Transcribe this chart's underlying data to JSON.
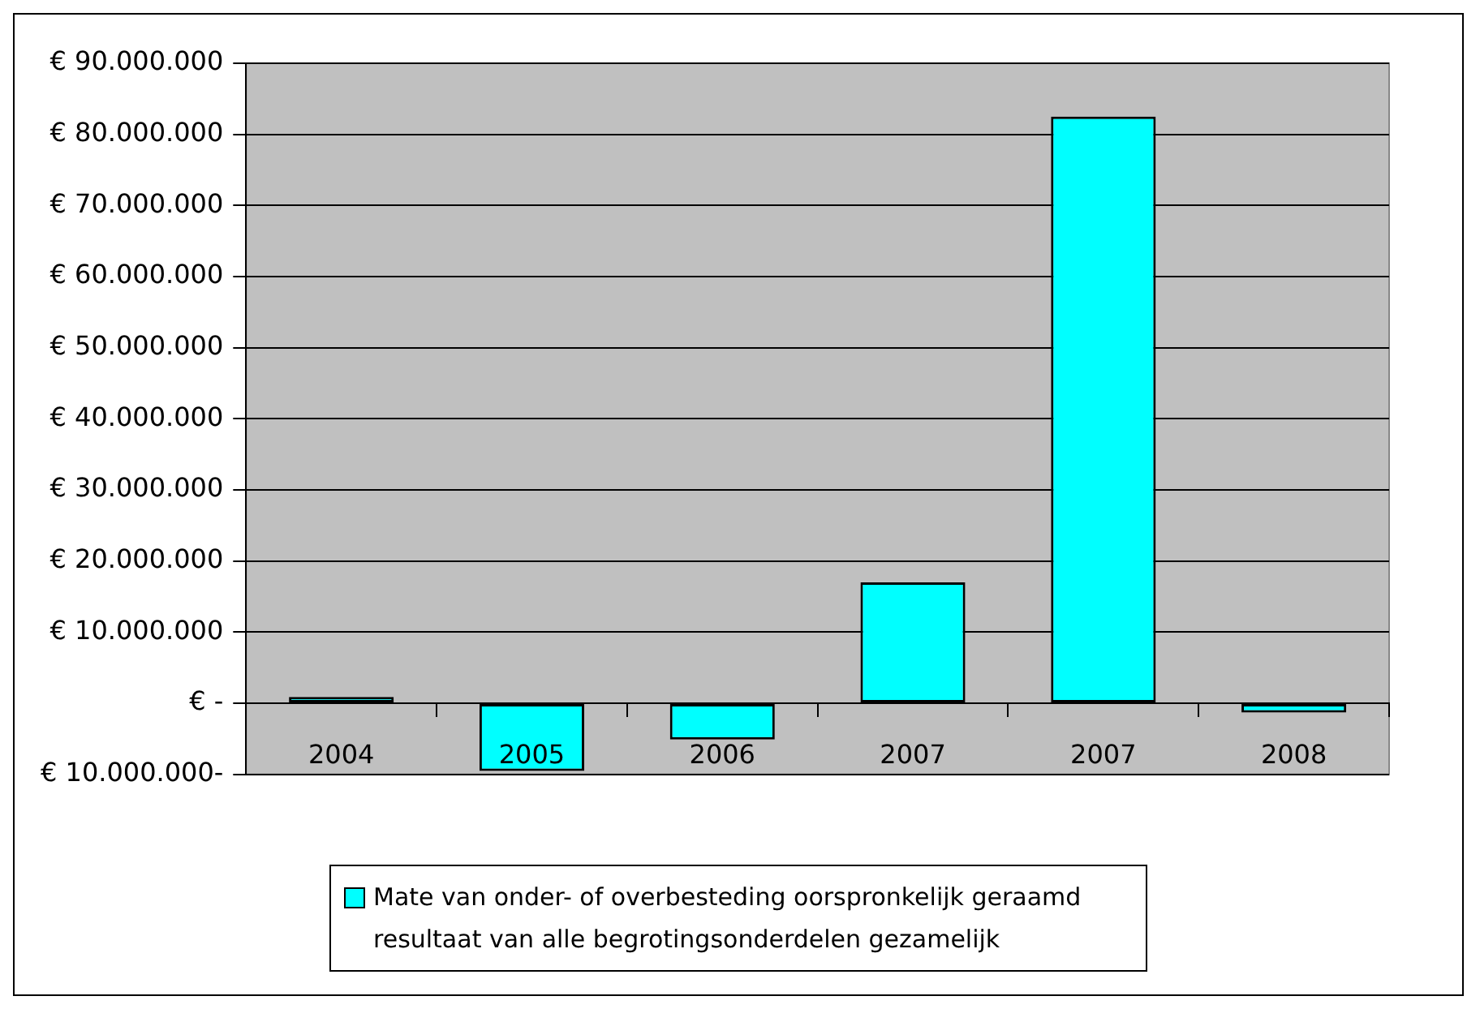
{
  "chart_data": {
    "type": "bar",
    "categories": [
      "2004",
      "2005",
      "2006",
      "2007",
      "2007",
      "2008"
    ],
    "series": [
      {
        "name": "Mate van onder- of overbesteding oorspronkelijk geraamd resultaat van alle begrotingsonderdelen gezamelijk",
        "color": "#00ffff",
        "values": [
          900000,
          -9500000,
          -5100000,
          17000000,
          82500000,
          -1300000
        ]
      }
    ],
    "ylim": [
      -10000000,
      90000000
    ],
    "yticks": [
      {
        "value": -10000000,
        "label": "€ 10.000.000-"
      },
      {
        "value": 0,
        "label": "€ -"
      },
      {
        "value": 10000000,
        "label": "€ 10.000.000"
      },
      {
        "value": 20000000,
        "label": "€ 20.000.000"
      },
      {
        "value": 30000000,
        "label": "€ 30.000.000"
      },
      {
        "value": 40000000,
        "label": "€ 40.000.000"
      },
      {
        "value": 50000000,
        "label": "€ 50.000.000"
      },
      {
        "value": 60000000,
        "label": "€ 60.000.000"
      },
      {
        "value": 70000000,
        "label": "€ 70.000.000"
      },
      {
        "value": 80000000,
        "label": "€ 80.000.000"
      },
      {
        "value": 90000000,
        "label": "€ 90.000.000"
      }
    ],
    "grid": "y",
    "legend": "bottom"
  }
}
